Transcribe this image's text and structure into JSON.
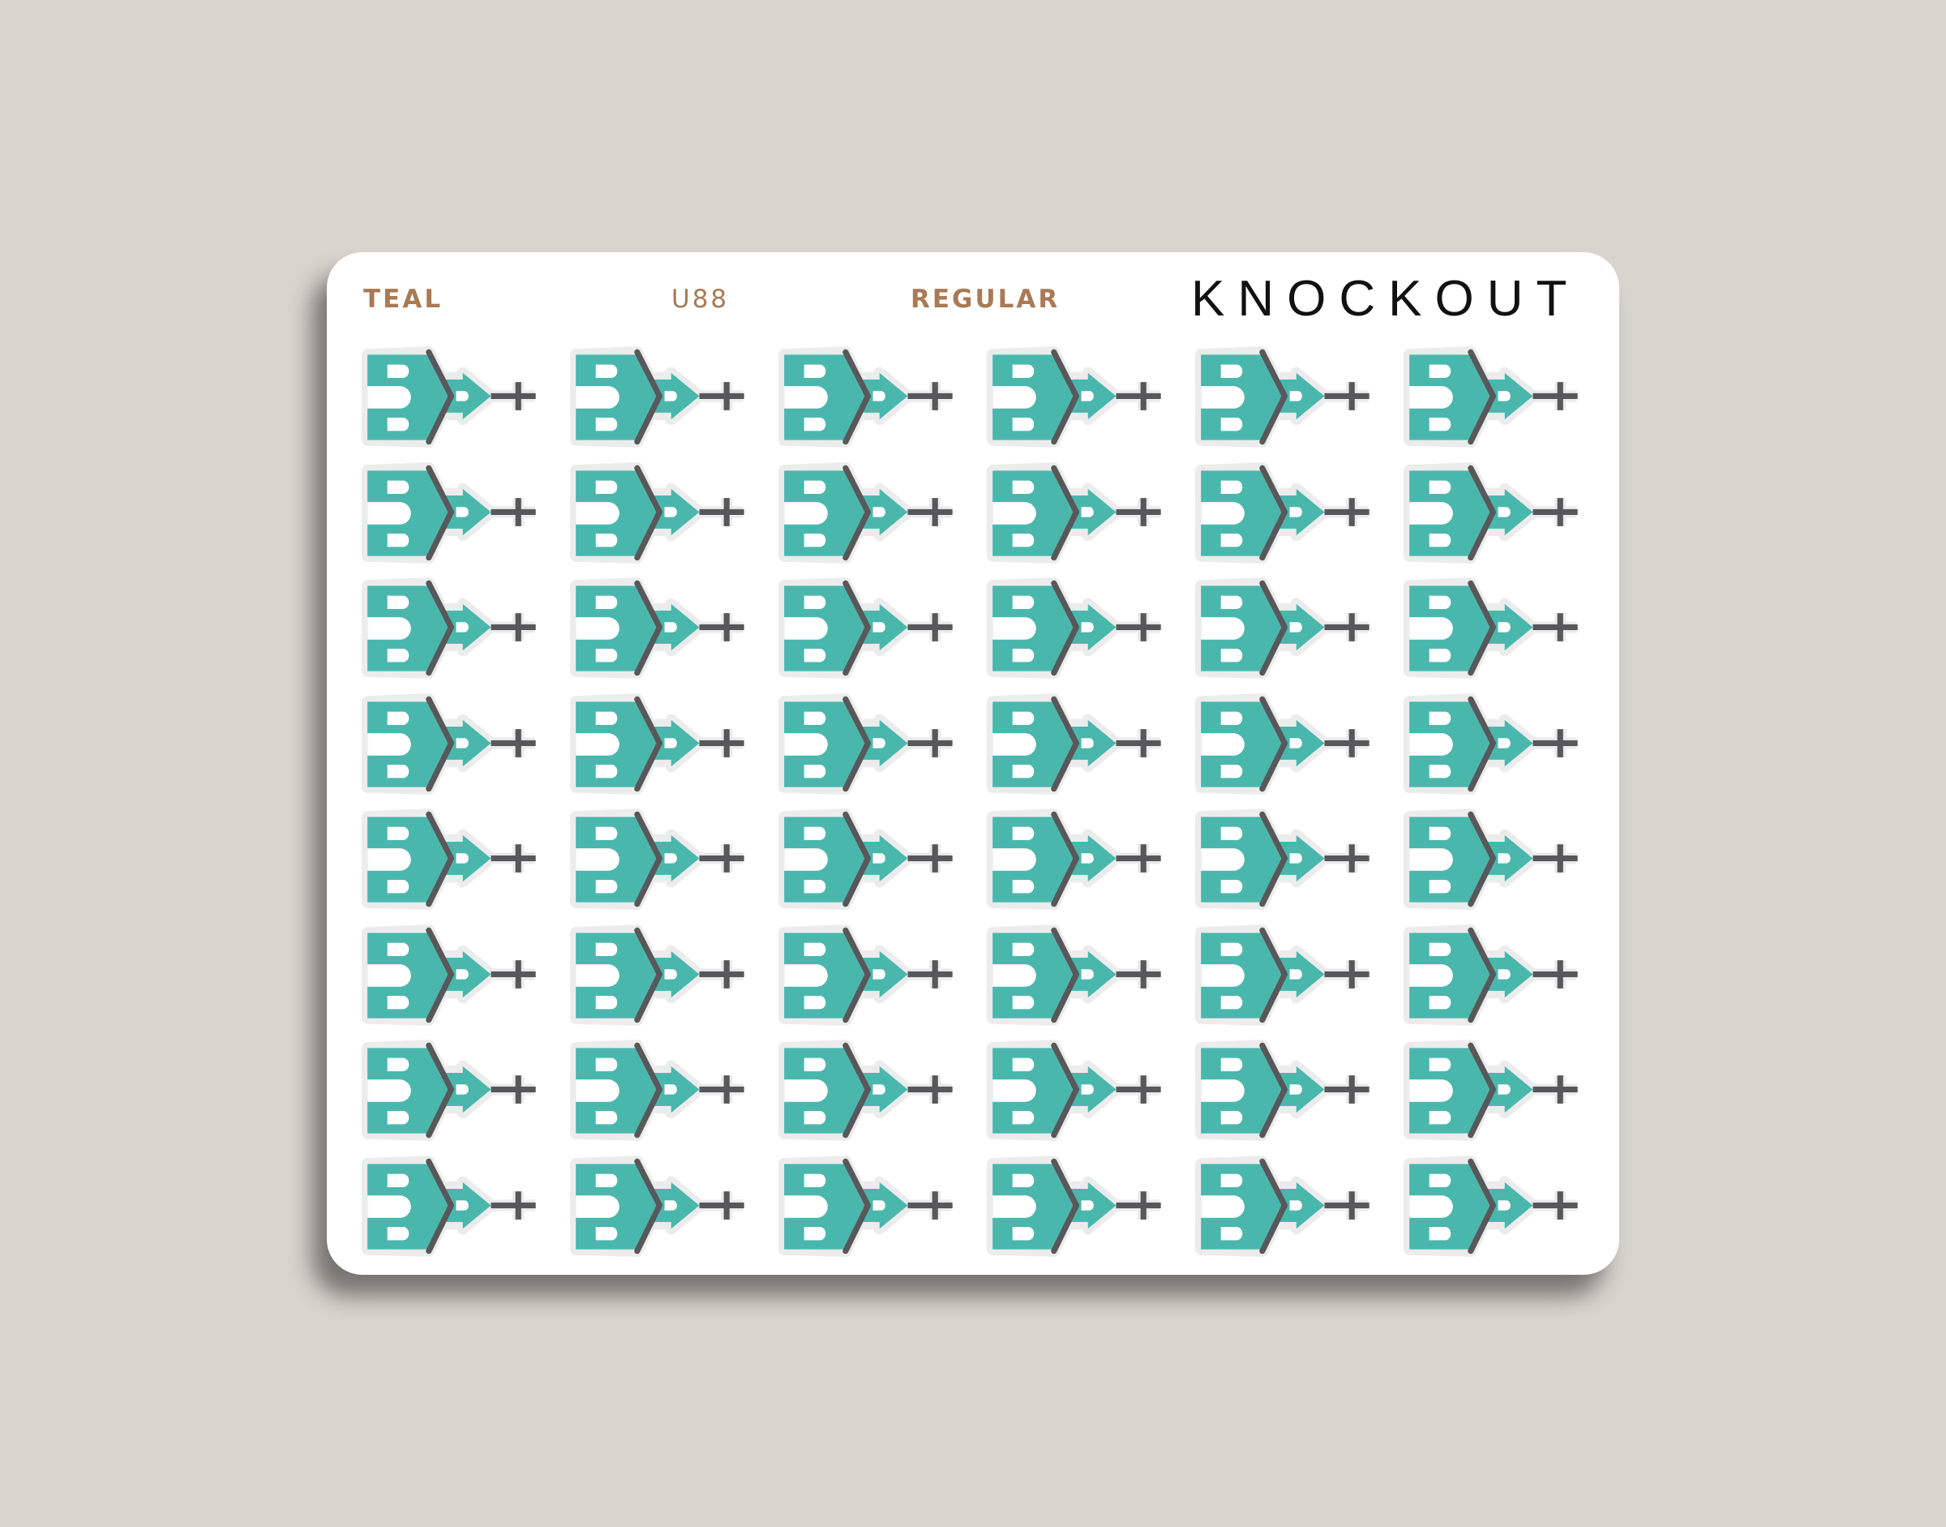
{
  "header": {
    "color_label": "TEAL",
    "code_label": "U88",
    "style_label": "REGULAR",
    "brand": "KNOCKOUT"
  },
  "colors": {
    "teal": "#4ab7ad",
    "dark": "#58585a",
    "label": "#a97a55"
  },
  "grid": {
    "rows": 8,
    "columns": 6,
    "icon": "teal-arrow-plus-sticker-icon"
  }
}
